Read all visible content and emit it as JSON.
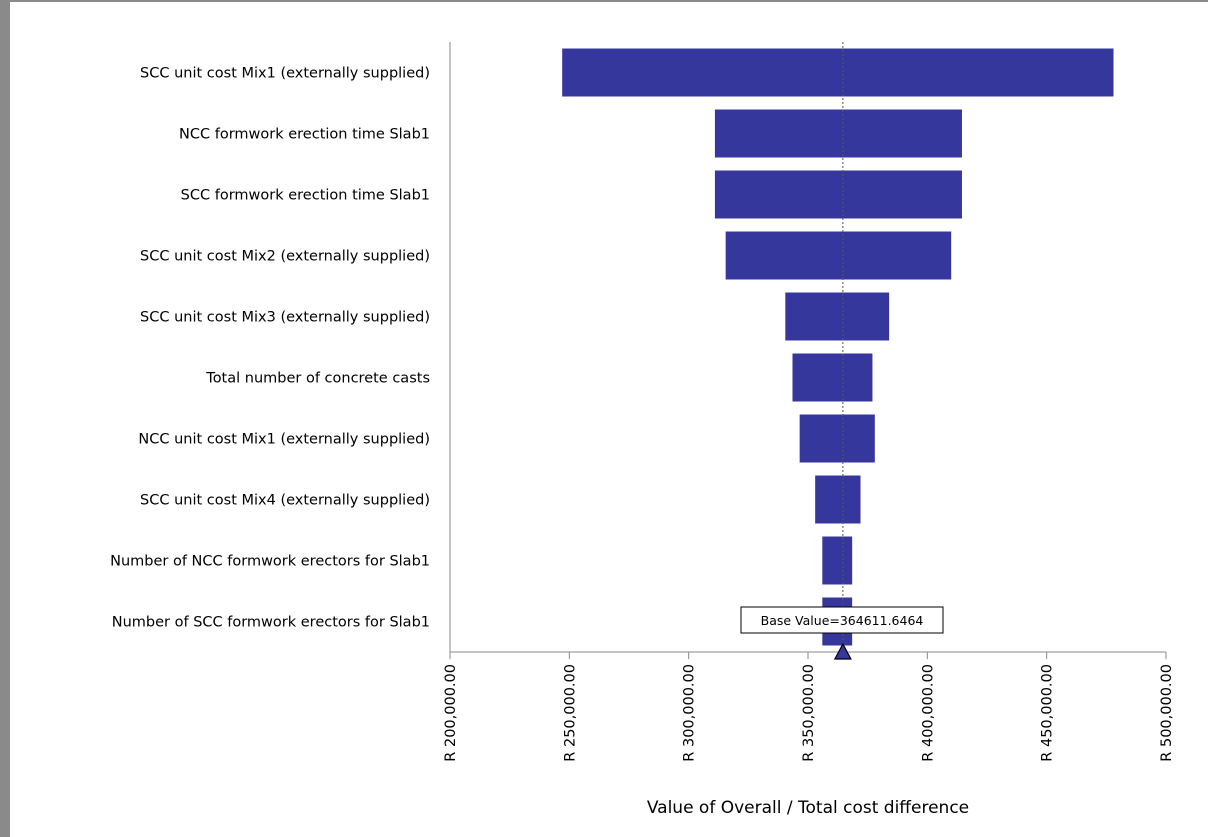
{
  "chart_data": {
    "type": "bar",
    "orientation": "horizontal",
    "subtype": "tornado",
    "title": "",
    "xlabel": "Value of Overall / Total cost difference",
    "ylabel": "",
    "xlim": [
      200000,
      500000
    ],
    "xticks": [
      200000,
      250000,
      300000,
      350000,
      400000,
      450000,
      500000
    ],
    "xtick_labels": [
      "R 200,000.00",
      "R 250,000.00",
      "R 300,000.00",
      "R 350,000.00",
      "R 400,000.00",
      "R 450,000.00",
      "R 500,000.00"
    ],
    "grid": false,
    "bar_color": "#35379c",
    "base_value": 364611.6464,
    "base_label": "Base Value=364611.6464",
    "categories": [
      "SCC unit cost Mix1 (externally supplied)",
      "NCC formwork erection time Slab1",
      "SCC formwork erection time Slab1",
      "SCC unit cost Mix2 (externally supplied)",
      "SCC unit cost Mix3 (externally supplied)",
      "Total number of concrete casts",
      "NCC unit cost Mix1 (externally supplied)",
      "SCC unit cost Mix4 (externally supplied)",
      "Number of NCC formwork erectors for Slab1",
      "Number of SCC formwork erectors for Slab1"
    ],
    "low": [
      247000,
      311000,
      311000,
      315500,
      340500,
      343500,
      346500,
      353000,
      356000,
      356000
    ],
    "high": [
      478000,
      414500,
      414500,
      410000,
      384000,
      377000,
      378000,
      372000,
      368500,
      368500
    ]
  }
}
